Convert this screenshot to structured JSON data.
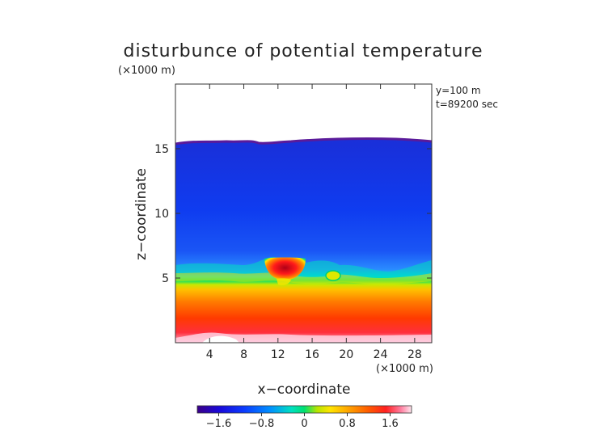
{
  "chart_data": {
    "type": "heatmap",
    "title": "disturbunce of potential temperature",
    "z_unit_label": "(×1000 m)",
    "x_unit_label": "(×1000 m)",
    "annotation": [
      "y=100 m",
      "t=89200 sec"
    ],
    "xlabel": "x−coordinate",
    "ylabel": "z−coordinate",
    "xlim": [
      0,
      30
    ],
    "ylim": [
      0,
      20
    ],
    "x_ticks": [
      4,
      8,
      12,
      16,
      20,
      24,
      28
    ],
    "y_ticks": [
      5,
      10,
      15
    ],
    "colorbar": {
      "range": [
        -2.0,
        2.0
      ],
      "ticks": [
        -1.6,
        -0.8,
        0,
        0.8,
        1.6
      ],
      "tick_labels": [
        "−1.6",
        "−0.8",
        "0",
        "0.8",
        "1.6"
      ],
      "colors": [
        "#3a0087",
        "#0017e6",
        "#0a4cff",
        "#00a0ff",
        "#00e0d0",
        "#00e070",
        "#8ce000",
        "#ffe800",
        "#ffb000",
        "#ff6a00",
        "#ff2a00",
        "#ff4a6a",
        "#ffd8e8"
      ]
    },
    "field_description": {
      "top_boundary_z": 15.8,
      "layers": [
        {
          "z_range": [
            0.5,
            2.0
          ],
          "value": 1.6
        },
        {
          "z_range": [
            2.0,
            5.0
          ],
          "value": 1.0
        },
        {
          "z_range": [
            5.0,
            6.2
          ],
          "value": 0.2
        },
        {
          "z_range": [
            6.2,
            15.8
          ],
          "value": -1.2
        }
      ],
      "warm_blob": {
        "x_range": [
          10.5,
          13.5
        ],
        "z_range": [
          4.8,
          6.0
        ],
        "value": 1.8
      }
    }
  }
}
